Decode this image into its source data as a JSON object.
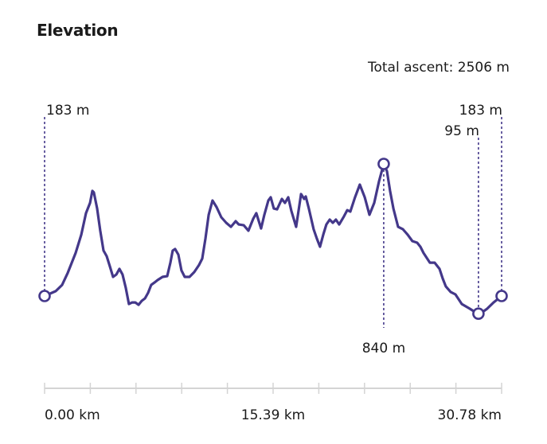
{
  "header": {
    "title": "Elevation",
    "total_ascent": "Total ascent: 2506 m"
  },
  "colors": {
    "line": "#44388a",
    "axis": "#d4d4d4",
    "marker_fill": "#ffffff"
  },
  "chart_data": {
    "type": "line",
    "title": "Elevation",
    "xlabel": "",
    "ylabel": "",
    "x_unit": "km",
    "y_unit": "m",
    "xlim": [
      0,
      30.78
    ],
    "x_tick_labels": [
      "0.00 km",
      "15.39 km",
      "30.78 km"
    ],
    "x_tick_count": 11,
    "grid": false,
    "annotations": [
      {
        "label": "183 m",
        "x": 0.0,
        "y": 183,
        "kind": "start"
      },
      {
        "label": "840 m",
        "x": 22.84,
        "y": 840,
        "kind": "max"
      },
      {
        "label": "95 m",
        "x": 29.22,
        "y": 95,
        "kind": "min"
      },
      {
        "label": "183 m",
        "x": 30.78,
        "y": 183,
        "kind": "end"
      }
    ],
    "points": [
      [
        0.0,
        183
      ],
      [
        0.75,
        207
      ],
      [
        1.18,
        238
      ],
      [
        1.56,
        298
      ],
      [
        2.09,
        397
      ],
      [
        2.47,
        488
      ],
      [
        2.79,
        595
      ],
      [
        3.06,
        646
      ],
      [
        3.22,
        706
      ],
      [
        3.32,
        698
      ],
      [
        3.54,
        618
      ],
      [
        3.75,
        508
      ],
      [
        3.97,
        409
      ],
      [
        4.18,
        381
      ],
      [
        4.4,
        329
      ],
      [
        4.61,
        278
      ],
      [
        4.83,
        290
      ],
      [
        5.04,
        318
      ],
      [
        5.25,
        290
      ],
      [
        5.47,
        223
      ],
      [
        5.68,
        143
      ],
      [
        5.9,
        151
      ],
      [
        6.11,
        151
      ],
      [
        6.33,
        139
      ],
      [
        6.54,
        159
      ],
      [
        6.76,
        171
      ],
      [
        6.97,
        199
      ],
      [
        7.18,
        238
      ],
      [
        7.4,
        250
      ],
      [
        7.61,
        262
      ],
      [
        7.94,
        278
      ],
      [
        8.26,
        282
      ],
      [
        8.47,
        349
      ],
      [
        8.63,
        409
      ],
      [
        8.79,
        417
      ],
      [
        9.01,
        389
      ],
      [
        9.22,
        310
      ],
      [
        9.44,
        278
      ],
      [
        9.76,
        278
      ],
      [
        10.08,
        302
      ],
      [
        10.4,
        337
      ],
      [
        10.62,
        369
      ],
      [
        10.83,
        468
      ],
      [
        11.05,
        587
      ],
      [
        11.31,
        658
      ],
      [
        11.58,
        626
      ],
      [
        11.9,
        575
      ],
      [
        12.23,
        547
      ],
      [
        12.55,
        527
      ],
      [
        12.87,
        555
      ],
      [
        13.08,
        539
      ],
      [
        13.41,
        535
      ],
      [
        13.73,
        508
      ],
      [
        14.05,
        567
      ],
      [
        14.26,
        595
      ],
      [
        14.58,
        519
      ],
      [
        14.8,
        587
      ],
      [
        15.07,
        658
      ],
      [
        15.23,
        674
      ],
      [
        15.44,
        618
      ],
      [
        15.66,
        614
      ],
      [
        15.98,
        666
      ],
      [
        16.19,
        646
      ],
      [
        16.41,
        674
      ],
      [
        16.62,
        607
      ],
      [
        16.94,
        527
      ],
      [
        17.16,
        634
      ],
      [
        17.27,
        690
      ],
      [
        17.48,
        666
      ],
      [
        17.59,
        678
      ],
      [
        17.8,
        618
      ],
      [
        18.12,
        515
      ],
      [
        18.34,
        468
      ],
      [
        18.55,
        428
      ],
      [
        18.77,
        488
      ],
      [
        18.98,
        539
      ],
      [
        19.2,
        563
      ],
      [
        19.41,
        547
      ],
      [
        19.62,
        563
      ],
      [
        19.84,
        539
      ],
      [
        20.16,
        579
      ],
      [
        20.38,
        610
      ],
      [
        20.59,
        603
      ],
      [
        20.91,
        674
      ],
      [
        21.23,
        737
      ],
      [
        21.56,
        674
      ],
      [
        21.88,
        587
      ],
      [
        22.2,
        646
      ],
      [
        22.52,
        753
      ],
      [
        22.84,
        840
      ],
      [
        23.06,
        804
      ],
      [
        23.27,
        706
      ],
      [
        23.49,
        618
      ],
      [
        23.81,
        527
      ],
      [
        24.13,
        515
      ],
      [
        24.45,
        488
      ],
      [
        24.77,
        456
      ],
      [
        25.09,
        448
      ],
      [
        25.31,
        428
      ],
      [
        25.52,
        397
      ],
      [
        25.95,
        349
      ],
      [
        26.27,
        349
      ],
      [
        26.6,
        318
      ],
      [
        26.81,
        270
      ],
      [
        27.02,
        231
      ],
      [
        27.35,
        203
      ],
      [
        27.67,
        191
      ],
      [
        28.1,
        143
      ],
      [
        28.63,
        120
      ],
      [
        29.06,
        100
      ],
      [
        29.22,
        95
      ],
      [
        29.38,
        97
      ],
      [
        29.81,
        120
      ],
      [
        30.24,
        151
      ],
      [
        30.78,
        183
      ]
    ]
  }
}
